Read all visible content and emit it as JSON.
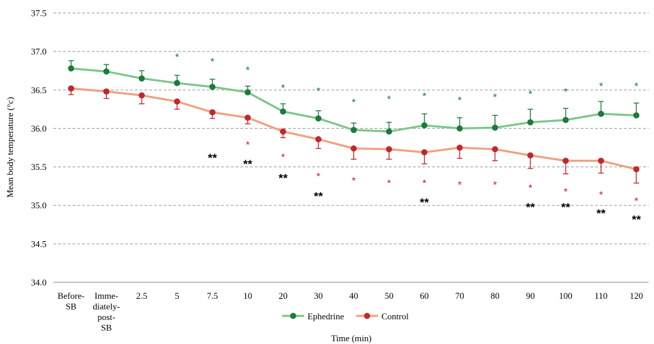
{
  "chart_data": {
    "type": "line",
    "title": "",
    "xlabel": "Time (min)",
    "ylabel": "Mean body temperature (°c)",
    "ylim": [
      34.0,
      37.5
    ],
    "yticks": [
      "34.0",
      "34.5",
      "35.0",
      "35.5",
      "36.0",
      "36.5",
      "37.0",
      "37.5"
    ],
    "grid": "horizontal dashed",
    "legend_position": "bottom",
    "categories": [
      [
        "Before-",
        "SB"
      ],
      [
        "Imme-",
        "diately-",
        "post-",
        "SB"
      ],
      [
        "2.5"
      ],
      [
        "5"
      ],
      [
        "7.5"
      ],
      [
        "10"
      ],
      [
        "20"
      ],
      [
        "30"
      ],
      [
        "40"
      ],
      [
        "50"
      ],
      [
        "60"
      ],
      [
        "70"
      ],
      [
        "80"
      ],
      [
        "90"
      ],
      [
        "100"
      ],
      [
        "110"
      ],
      [
        "120"
      ]
    ],
    "series": [
      {
        "name": "Ephedrine",
        "color": "#7cc68a",
        "marker_color": "#1e7a3a",
        "values": [
          36.78,
          36.74,
          36.65,
          36.59,
          36.54,
          36.47,
          36.22,
          36.13,
          35.98,
          35.96,
          36.04,
          36.0,
          36.01,
          36.08,
          36.11,
          36.19,
          36.17
        ],
        "error": [
          0.1,
          0.09,
          0.1,
          0.1,
          0.1,
          0.08,
          0.1,
          0.1,
          0.09,
          0.12,
          0.15,
          0.14,
          0.16,
          0.17,
          0.15,
          0.16,
          0.16
        ],
        "significance": [
          "",
          "",
          "",
          "*",
          "*",
          "*",
          "*",
          "*",
          "*",
          "*",
          "*",
          "*",
          "*",
          "*",
          "*",
          "*",
          "*"
        ],
        "significance_y": [
          null,
          null,
          null,
          36.94,
          36.88,
          36.77,
          36.54,
          36.5,
          36.35,
          36.39,
          36.43,
          36.38,
          36.42,
          36.46,
          36.49,
          36.56,
          36.56
        ]
      },
      {
        "name": "Control",
        "color": "#f0a080",
        "marker_color": "#c0282b",
        "values": [
          36.52,
          36.48,
          36.43,
          36.35,
          36.21,
          36.14,
          35.96,
          35.86,
          35.74,
          35.73,
          35.69,
          35.75,
          35.73,
          35.65,
          35.58,
          35.58,
          35.47
        ],
        "error": [
          0.08,
          0.09,
          0.11,
          0.1,
          0.08,
          0.08,
          0.08,
          0.12,
          0.14,
          0.13,
          0.15,
          0.14,
          0.15,
          0.17,
          0.17,
          0.16,
          0.18
        ],
        "significance": [
          "",
          "",
          "",
          "",
          "",
          "*",
          "*",
          "*",
          "*",
          "*",
          "*",
          "*",
          "*",
          "*",
          "*",
          "*",
          "*"
        ],
        "significance_y": [
          null,
          null,
          null,
          null,
          null,
          35.8,
          35.64,
          35.39,
          35.33,
          35.3,
          35.3,
          35.28,
          35.28,
          35.24,
          35.19,
          35.15,
          35.07
        ]
      }
    ],
    "between_group_significance": {
      "label": "**",
      "categories": [
        "7.5",
        "10",
        "20",
        "30",
        "60",
        "90",
        "100",
        "110",
        "120"
      ],
      "y": [
        35.62,
        35.54,
        35.36,
        35.12,
        35.04,
        34.98,
        34.98,
        34.9,
        34.82
      ]
    }
  }
}
